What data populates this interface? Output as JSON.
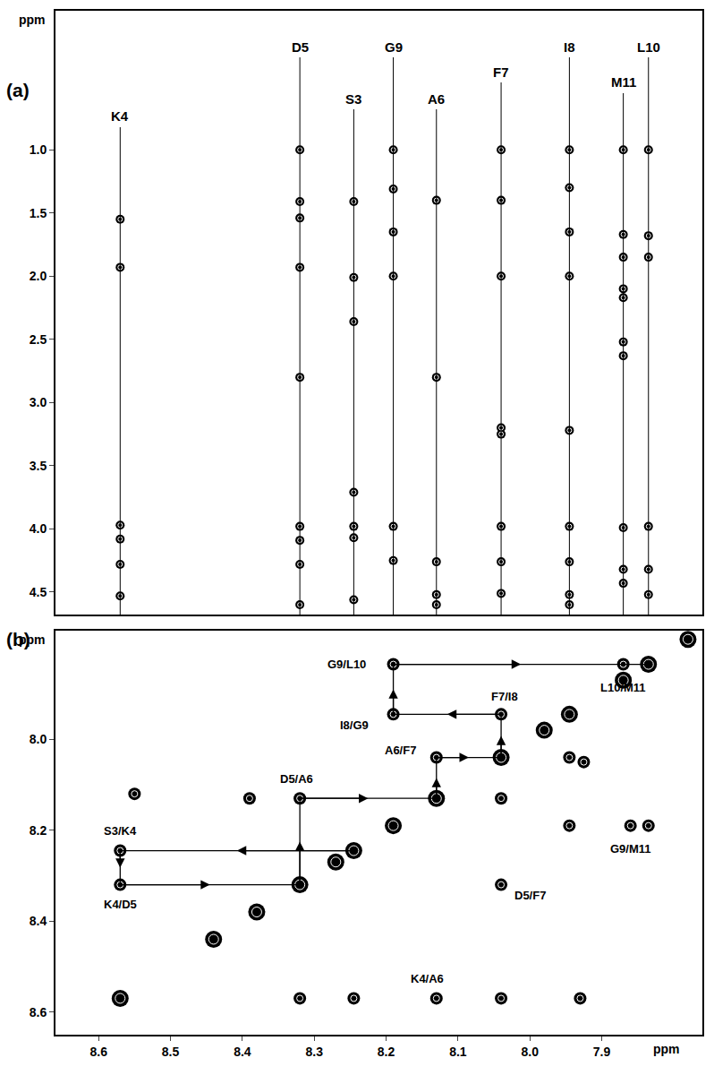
{
  "chart_data": [
    {
      "type": "scatter",
      "title": "(a)",
      "ylabel": "ppm",
      "tick_labels": "y",
      "legend": "none",
      "xlim": [
        8.66,
        7.76
      ],
      "ylim": [
        4.68,
        -0.1
      ],
      "yticks": [
        {
          "value": 1,
          "label": "1.0"
        },
        1.5,
        {
          "value": 2,
          "label": "2.0"
        },
        2.5,
        {
          "value": 3,
          "label": "3.0"
        },
        3.5,
        {
          "value": 4,
          "label": "4.0"
        },
        4.5
      ],
      "series": [
        {
          "name": "K4",
          "x": 8.57,
          "values": [
            1.55,
            1.93,
            3.97,
            4.08,
            4.28,
            4.53
          ]
        },
        {
          "name": "D5",
          "x": 8.32,
          "values": [
            1.0,
            1.41,
            1.54,
            1.93,
            2.8,
            3.98,
            4.09,
            4.28,
            4.6
          ]
        },
        {
          "name": "S3",
          "x": 8.245,
          "values": [
            1.41,
            2.01,
            2.36,
            3.71,
            3.98,
            4.07,
            4.56
          ]
        },
        {
          "name": "G9",
          "x": 8.19,
          "values": [
            1.0,
            1.31,
            1.65,
            2.0,
            3.98,
            4.25
          ]
        },
        {
          "name": "A6",
          "x": 8.13,
          "values": [
            1.4,
            2.8,
            4.26,
            4.52,
            4.6
          ]
        },
        {
          "name": "F7",
          "x": 8.04,
          "values": [
            1.0,
            1.4,
            2.0,
            3.2,
            3.25,
            3.98,
            4.26,
            4.51
          ]
        },
        {
          "name": "I8",
          "x": 7.945,
          "values": [
            1.0,
            1.3,
            1.65,
            2.0,
            3.22,
            3.98,
            4.26,
            4.52,
            4.6
          ]
        },
        {
          "name": "M11",
          "x": 7.87,
          "values": [
            1.0,
            1.67,
            1.85,
            2.1,
            2.17,
            2.52,
            2.63,
            3.99,
            4.32,
            4.43
          ]
        },
        {
          "name": "L10",
          "x": 7.835,
          "values": [
            1.0,
            1.68,
            1.85,
            3.98,
            4.32,
            4.52
          ]
        }
      ]
    },
    {
      "type": "scatter",
      "title": "(b)",
      "xlabel": "ppm",
      "ylabel": "ppm",
      "legend": "none",
      "xlim": [
        8.66,
        7.76
      ],
      "ylim": [
        8.65,
        7.76
      ],
      "xticks": [
        8.6,
        8.5,
        8.4,
        8.3,
        8.2,
        8.1,
        {
          "value": 8,
          "label": "8.0"
        },
        7.9
      ],
      "yticks": [
        {
          "value": 8,
          "label": "8.0"
        },
        8.2,
        8.4,
        8.6
      ],
      "diagonal": [
        8.57,
        8.44,
        8.38,
        8.32,
        8.27,
        8.245,
        8.19,
        8.13,
        8.04,
        7.98,
        7.945,
        7.87,
        7.835,
        7.78
      ],
      "x": [
        8.57,
        8.57,
        8.32,
        8.13,
        8.04,
        8.19,
        8.19,
        7.87,
        7.835,
        7.86,
        7.945,
        8.04,
        8.13,
        8.32,
        8.245,
        8.04,
        7.945,
        8.04,
        7.93,
        8.39,
        8.55,
        7.925
      ],
      "values": [
        8.245,
        8.32,
        8.13,
        8.04,
        7.945,
        7.945,
        7.835,
        7.835,
        8.19,
        8.19,
        8.19,
        8.32,
        8.57,
        8.57,
        8.57,
        8.13,
        8.04,
        8.57,
        8.57,
        8.13,
        8.12,
        8.05
      ],
      "annotations": [
        {
          "text": "S3/K4",
          "x": 8.57,
          "y": 8.245
        },
        {
          "text": "K4/D5",
          "x": 8.57,
          "y": 8.32
        },
        {
          "text": "D5/A6",
          "x": 8.32,
          "y": 8.13
        },
        {
          "text": "A6/F7",
          "x": 8.13,
          "y": 8.04
        },
        {
          "text": "F7/I8",
          "x": 8.04,
          "y": 7.945
        },
        {
          "text": "I8/G9",
          "x": 8.19,
          "y": 7.945
        },
        {
          "text": "G9/L10",
          "x": 8.19,
          "y": 7.835
        },
        {
          "text": "L10/M11",
          "x": 7.87,
          "y": 7.835
        },
        {
          "text": "G9/M11",
          "x": 7.86,
          "y": 8.19
        },
        {
          "text": "D5/F7",
          "x": 8.04,
          "y": 8.32
        },
        {
          "text": "K4/A6",
          "x": 8.13,
          "y": 8.57
        }
      ],
      "arrows": [
        {
          "x": [
            8.245,
            8.57
          ],
          "y": [
            8.245,
            8.245
          ]
        },
        {
          "x": [
            8.57,
            8.57
          ],
          "y": [
            8.245,
            8.32
          ]
        },
        {
          "x": [
            8.57,
            8.32
          ],
          "y": [
            8.32,
            8.32
          ]
        },
        {
          "x": [
            8.32,
            8.32
          ],
          "y": [
            8.32,
            8.13
          ]
        },
        {
          "x": [
            8.32,
            8.13
          ],
          "y": [
            8.13,
            8.13
          ]
        },
        {
          "x": [
            8.13,
            8.13
          ],
          "y": [
            8.13,
            8.04
          ]
        },
        {
          "x": [
            8.13,
            8.04
          ],
          "y": [
            8.04,
            8.04
          ]
        },
        {
          "x": [
            8.04,
            8.04
          ],
          "y": [
            8.04,
            7.945
          ]
        },
        {
          "x": [
            8.04,
            8.19
          ],
          "y": [
            7.945,
            7.945
          ]
        },
        {
          "x": [
            8.19,
            8.19
          ],
          "y": [
            7.945,
            7.835
          ]
        },
        {
          "x": [
            8.19,
            7.835
          ],
          "y": [
            7.835,
            7.835
          ]
        }
      ]
    }
  ]
}
